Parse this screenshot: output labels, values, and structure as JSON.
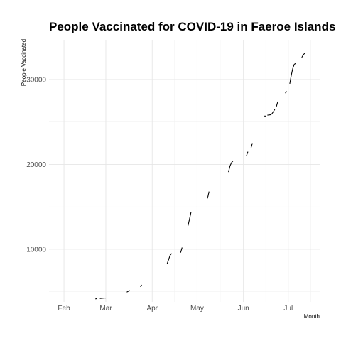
{
  "chart_data": {
    "type": "line",
    "title": "People Vaccinated for COVID-19 in Faeroe Islands",
    "xlabel": "Month",
    "ylabel": "People Vaccinated",
    "x_ticks": [
      {
        "date": "2021-02-01",
        "label": "Feb"
      },
      {
        "date": "2021-03-01",
        "label": "Mar"
      },
      {
        "date": "2021-04-01",
        "label": "Apr"
      },
      {
        "date": "2021-05-01",
        "label": "May"
      },
      {
        "date": "2021-06-01",
        "label": "Jun"
      },
      {
        "date": "2021-07-01",
        "label": "Jul"
      }
    ],
    "y_ticks": [
      {
        "value": 10000,
        "label": "10000"
      },
      {
        "value": 20000,
        "label": "20000"
      },
      {
        "value": 30000,
        "label": "30000"
      }
    ],
    "xlim": [
      "2021-01-22",
      "2021-07-22"
    ],
    "ylim": [
      3800,
      34600
    ],
    "grid": true,
    "series": [
      {
        "color": "#000000",
        "segments": [
          [
            [
              "2021-02-22",
              4150
            ],
            [
              "2021-02-23",
              4180
            ]
          ],
          [
            [
              "2021-02-25",
              4200
            ],
            [
              "2021-02-28",
              4250
            ],
            [
              "2021-03-01",
              4250
            ]
          ],
          [
            [
              "2021-03-15",
              4950
            ],
            [
              "2021-03-16",
              5050
            ],
            [
              "2021-03-17",
              5150
            ]
          ],
          [
            [
              "2021-03-24",
              5600
            ],
            [
              "2021-03-25",
              5800
            ]
          ],
          [
            [
              "2021-04-11",
              8300
            ],
            [
              "2021-04-12",
              8800
            ],
            [
              "2021-04-13",
              9300
            ],
            [
              "2021-04-14",
              9500
            ]
          ],
          [
            [
              "2021-04-20",
              9600
            ],
            [
              "2021-04-21",
              10200
            ]
          ],
          [
            [
              "2021-04-25",
              12800
            ],
            [
              "2021-04-26",
              13600
            ],
            [
              "2021-04-27",
              14400
            ]
          ],
          [
            [
              "2021-05-08",
              16000
            ],
            [
              "2021-05-09",
              16800
            ]
          ],
          [
            [
              "2021-05-22",
              19100
            ],
            [
              "2021-05-23",
              19800
            ],
            [
              "2021-05-24",
              20200
            ],
            [
              "2021-05-25",
              20400
            ]
          ],
          [
            [
              "2021-06-03",
              21000
            ],
            [
              "2021-06-04",
              21500
            ]
          ],
          [
            [
              "2021-06-06",
              21900
            ],
            [
              "2021-06-07",
              22500
            ]
          ],
          [
            [
              "2021-06-15",
              25700
            ],
            [
              "2021-06-16",
              25700
            ]
          ],
          [
            [
              "2021-06-17",
              25800
            ],
            [
              "2021-06-19",
              25850
            ],
            [
              "2021-06-20",
              25950
            ],
            [
              "2021-06-21",
              26200
            ],
            [
              "2021-06-22",
              26500
            ]
          ],
          [
            [
              "2021-06-23",
              26800
            ],
            [
              "2021-06-24",
              27400
            ]
          ],
          [
            [
              "2021-06-29",
              28400
            ],
            [
              "2021-06-30",
              28600
            ]
          ],
          [
            [
              "2021-07-02",
              29500
            ],
            [
              "2021-07-03",
              30500
            ],
            [
              "2021-07-04",
              31300
            ],
            [
              "2021-07-05",
              31800
            ],
            [
              "2021-07-06",
              31900
            ]
          ],
          [
            [
              "2021-07-10",
              32600
            ],
            [
              "2021-07-11",
              32900
            ],
            [
              "2021-07-12",
              33100
            ]
          ]
        ]
      }
    ]
  }
}
